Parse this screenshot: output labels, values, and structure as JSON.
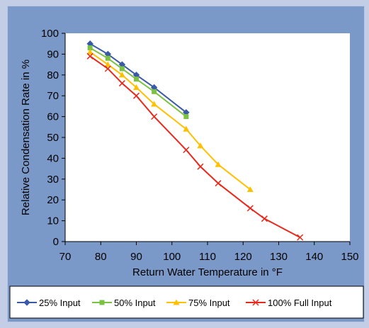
{
  "chart_data": {
    "type": "line",
    "xlabel": "Return Water Temperature in °F",
    "ylabel": "Relative Condensation Rate in %",
    "xlim": [
      70,
      150
    ],
    "ylim": [
      0,
      100
    ],
    "xticks": [
      70,
      80,
      90,
      100,
      110,
      120,
      130,
      140,
      150
    ],
    "yticks": [
      0,
      10,
      20,
      30,
      40,
      50,
      60,
      70,
      80,
      90,
      100
    ],
    "grid": false,
    "legend_position": "bottom",
    "series": [
      {
        "name": "25% Input",
        "color": "#3a5aa8",
        "marker": "diamond",
        "points": [
          [
            77,
            95
          ],
          [
            82,
            90
          ],
          [
            86,
            85
          ],
          [
            90,
            80
          ],
          [
            95,
            74
          ],
          [
            104,
            62
          ]
        ]
      },
      {
        "name": "50% Input",
        "color": "#7cc242",
        "marker": "square",
        "points": [
          [
            77,
            93
          ],
          [
            82,
            88
          ],
          [
            86,
            83
          ],
          [
            90,
            78
          ],
          [
            95,
            72
          ],
          [
            104,
            60
          ]
        ]
      },
      {
        "name": "75% Input",
        "color": "#ffc000",
        "marker": "triangle",
        "points": [
          [
            77,
            91
          ],
          [
            82,
            85
          ],
          [
            86,
            80
          ],
          [
            90,
            74
          ],
          [
            95,
            66
          ],
          [
            104,
            54
          ],
          [
            108,
            46
          ],
          [
            113,
            37
          ],
          [
            122,
            25
          ]
        ]
      },
      {
        "name": "100% Full Input",
        "color": "#e8291c",
        "marker": "x",
        "points": [
          [
            77,
            89
          ],
          [
            82,
            83
          ],
          [
            86,
            76
          ],
          [
            90,
            70
          ],
          [
            95,
            60
          ],
          [
            104,
            44
          ],
          [
            108,
            36
          ],
          [
            113,
            28
          ],
          [
            122,
            16
          ],
          [
            126,
            11
          ],
          [
            136,
            2
          ]
        ]
      }
    ]
  }
}
